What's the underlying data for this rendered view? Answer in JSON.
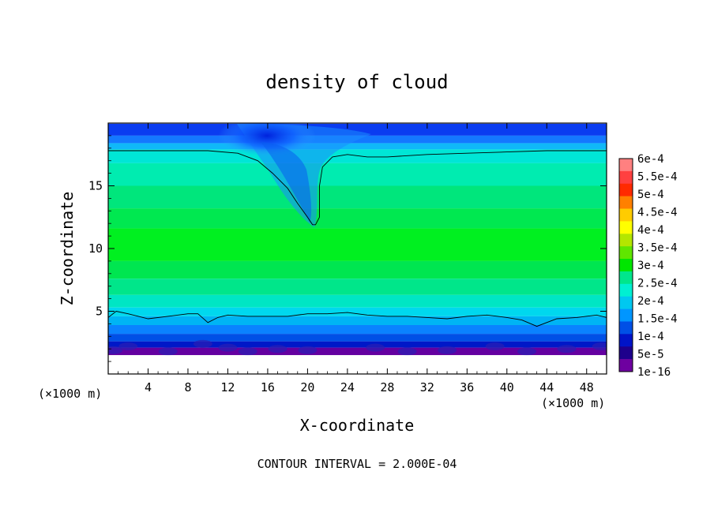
{
  "chart_data": {
    "type": "heatmap",
    "title": "density of cloud",
    "xlabel": "X-coordinate",
    "ylabel": "Z-coordinate",
    "x_unit_label": "(×1000 m)",
    "xlim": [
      0,
      50
    ],
    "ylim": [
      0,
      20
    ],
    "x_ticks": [
      4,
      8,
      12,
      16,
      20,
      24,
      28,
      32,
      36,
      40,
      44,
      48
    ],
    "y_ticks": [
      5,
      10,
      15
    ],
    "footer": "CONTOUR INTERVAL = 2.000E-04",
    "colorbar": {
      "labels": [
        "6e-4",
        "5.5e-4",
        "5e-4",
        "4.5e-4",
        "4e-4",
        "3.5e-4",
        "3e-4",
        "2.5e-4",
        "2e-4",
        "1.5e-4",
        "1e-4",
        "5e-5",
        "1e-16"
      ],
      "colors": [
        "#ff8080",
        "#ff4040",
        "#ff2a00",
        "#ff8000",
        "#ffcc00",
        "#ffff00",
        "#b4e600",
        "#60e600",
        "#00e600",
        "#00e68c",
        "#00f0d2",
        "#00c8f0",
        "#0096ff",
        "#0050e6",
        "#0014c8",
        "#1e008c",
        "#6e00a0"
      ]
    },
    "contour_lines": [
      {
        "level": "2.000E-04",
        "x": [
          0.0,
          5.0,
          10.0,
          13.0,
          15.0,
          16.5,
          18.0,
          19.0,
          20.0,
          20.5,
          20.8,
          21.2,
          21.2,
          21.5,
          22.5,
          24.0,
          26.0,
          28.0,
          32.0,
          36.0,
          40.0,
          44.0,
          48.0,
          50.0
        ],
        "y": [
          17.8,
          17.8,
          17.8,
          17.6,
          17.0,
          16.0,
          14.8,
          13.6,
          12.5,
          11.9,
          11.9,
          12.5,
          15.0,
          16.5,
          17.3,
          17.5,
          17.3,
          17.3,
          17.5,
          17.6,
          17.7,
          17.8,
          17.8,
          17.8
        ]
      },
      {
        "level": "2.000E-04",
        "x": [
          0.0,
          0.8,
          2.0,
          4.0,
          6.0,
          8.0,
          9.0,
          10.0,
          11.0,
          12.0,
          14.0,
          16.0,
          18.0,
          20.0,
          22.0,
          24.0,
          26.0,
          28.0,
          30.0,
          32.0,
          34.0,
          36.0,
          38.0,
          40.0,
          41.5,
          43.0,
          45.0,
          47.0,
          49.0,
          50.0
        ],
        "y": [
          4.5,
          5.0,
          4.8,
          4.4,
          4.6,
          4.8,
          4.8,
          4.1,
          4.5,
          4.7,
          4.6,
          4.6,
          4.6,
          4.8,
          4.8,
          4.9,
          4.7,
          4.6,
          4.6,
          4.5,
          4.4,
          4.6,
          4.7,
          4.5,
          4.3,
          3.8,
          4.4,
          4.5,
          4.7,
          4.5
        ]
      }
    ]
  }
}
